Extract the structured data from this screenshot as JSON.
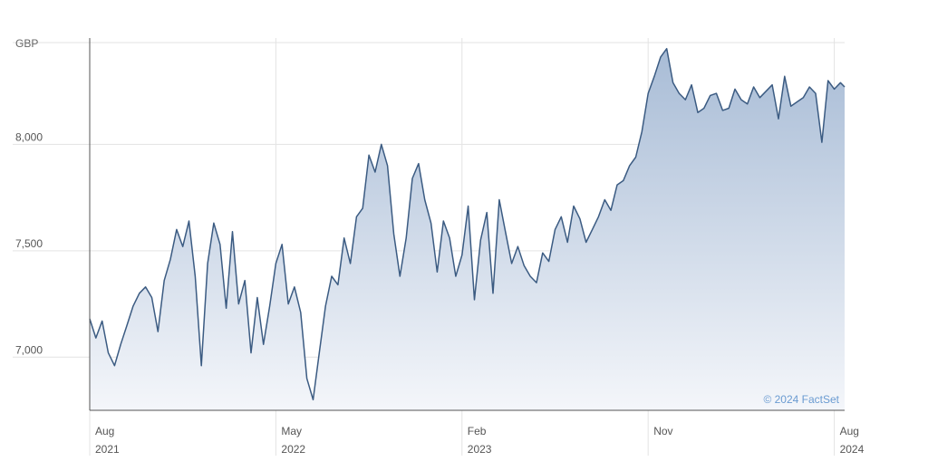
{
  "chart_data": {
    "type": "area",
    "currency_label": "GBP",
    "credit": "© 2024 FactSet",
    "ylim": [
      6750,
      8500
    ],
    "y_ticks": [
      {
        "value": 7000,
        "label": "7,000"
      },
      {
        "value": 7500,
        "label": "7,500"
      },
      {
        "value": 8000,
        "label": "8,000"
      }
    ],
    "x_range": [
      0,
      36.5
    ],
    "x_ticks": [
      {
        "value": 0,
        "month": "Aug",
        "year": "2021"
      },
      {
        "value": 9,
        "month": "May",
        "year": "2022"
      },
      {
        "value": 18,
        "month": "Feb",
        "year": "2023"
      },
      {
        "value": 27,
        "month": "Nov",
        "year": ""
      },
      {
        "value": 36,
        "month": "Aug",
        "year": "2024"
      }
    ],
    "grid": true,
    "colors": {
      "line": "#3b5b82",
      "fill_top": "#a8bcd6",
      "fill_bottom": "#f4f6fa",
      "grid": "#e3e3e3",
      "credit": "#6a9bd1"
    },
    "series": [
      {
        "x": [
          0,
          0.3,
          0.6,
          0.9,
          1.2,
          1.5,
          1.8,
          2.1,
          2.4,
          2.7,
          3.0,
          3.3,
          3.6,
          3.9,
          4.2,
          4.5,
          4.8,
          5.1,
          5.4,
          5.7,
          6.0,
          6.3,
          6.6,
          6.9,
          7.2,
          7.5,
          7.8,
          8.1,
          8.4,
          8.7,
          9.0,
          9.3,
          9.6,
          9.9,
          10.2,
          10.5,
          10.8,
          11.1,
          11.4,
          11.7,
          12.0,
          12.3,
          12.6,
          12.9,
          13.2,
          13.5,
          13.8,
          14.1,
          14.4,
          14.7,
          15.0,
          15.3,
          15.6,
          15.9,
          16.2,
          16.5,
          16.8,
          17.1,
          17.4,
          17.7,
          18.0,
          18.3,
          18.6,
          18.9,
          19.2,
          19.5,
          19.8,
          20.1,
          20.4,
          20.7,
          21.0,
          21.3,
          21.6,
          21.9,
          22.2,
          22.5,
          22.8,
          23.1,
          23.4,
          23.7,
          24.0,
          24.3,
          24.6,
          24.9,
          25.2,
          25.5,
          25.8,
          26.1,
          26.4,
          26.7,
          27.0,
          27.3,
          27.6,
          27.9,
          28.2,
          28.5,
          28.8,
          29.1,
          29.4,
          29.7,
          30.0,
          30.3,
          30.6,
          30.9,
          31.2,
          31.5,
          31.8,
          32.1,
          32.4,
          32.7,
          33.0,
          33.3,
          33.6,
          33.9,
          34.2,
          34.5,
          34.8,
          35.1,
          35.4,
          35.7,
          36.0,
          36.3,
          36.5
        ],
        "values": [
          7180,
          7090,
          7170,
          7020,
          6960,
          7060,
          7150,
          7240,
          7300,
          7330,
          7280,
          7120,
          7360,
          7460,
          7600,
          7520,
          7640,
          7380,
          6960,
          7440,
          7630,
          7530,
          7230,
          7590,
          7250,
          7360,
          7020,
          7280,
          7060,
          7240,
          7440,
          7530,
          7250,
          7330,
          7210,
          6900,
          6800,
          7020,
          7240,
          7380,
          7340,
          7560,
          7440,
          7660,
          7700,
          7950,
          7870,
          8000,
          7900,
          7580,
          7380,
          7560,
          7840,
          7910,
          7740,
          7630,
          7400,
          7640,
          7560,
          7380,
          7480,
          7710,
          7270,
          7550,
          7680,
          7300,
          7740,
          7590,
          7440,
          7520,
          7430,
          7380,
          7350,
          7490,
          7450,
          7600,
          7660,
          7540,
          7710,
          7650,
          7540,
          7600,
          7660,
          7740,
          7690,
          7810,
          7830,
          7900,
          7940,
          8060,
          8240,
          8320,
          8410,
          8450,
          8290,
          8240,
          8210,
          8280,
          8150,
          8170,
          8230,
          8240,
          8160,
          8170,
          8260,
          8210,
          8190,
          8270,
          8220,
          8250,
          8280,
          8120,
          8320,
          8180,
          8200,
          8220,
          8270,
          8240,
          8010,
          8300,
          8260,
          8290,
          8270
        ]
      }
    ]
  }
}
